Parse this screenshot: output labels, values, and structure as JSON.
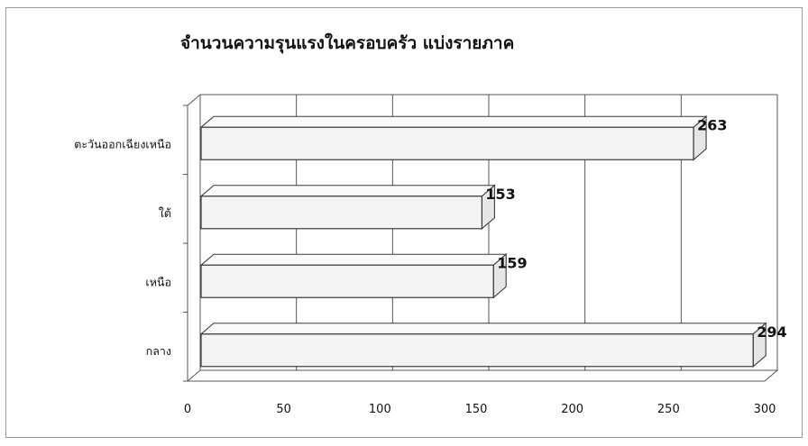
{
  "chart_data": {
    "type": "bar",
    "orientation": "horizontal",
    "style": "3d",
    "title": "จำนวนความรุนแรงในครอบครัว แบ่งรายภาค",
    "categories": [
      "ตะวันออกเฉียงเหนือ",
      "ใต้",
      "เหนือ",
      "กลาง"
    ],
    "values": [
      263,
      153,
      159,
      294
    ],
    "data_labels": [
      "263",
      "153",
      "159",
      "294"
    ],
    "xlim": [
      0,
      300
    ],
    "x_ticks": [
      0,
      50,
      100,
      150,
      200,
      250,
      300
    ],
    "grid": true,
    "legend": "none",
    "colors": {
      "bar_face": "#f4f4f4",
      "bar_edge": "#3a3a3a",
      "grid": "#555555",
      "frame": "#9a9a9a"
    }
  }
}
